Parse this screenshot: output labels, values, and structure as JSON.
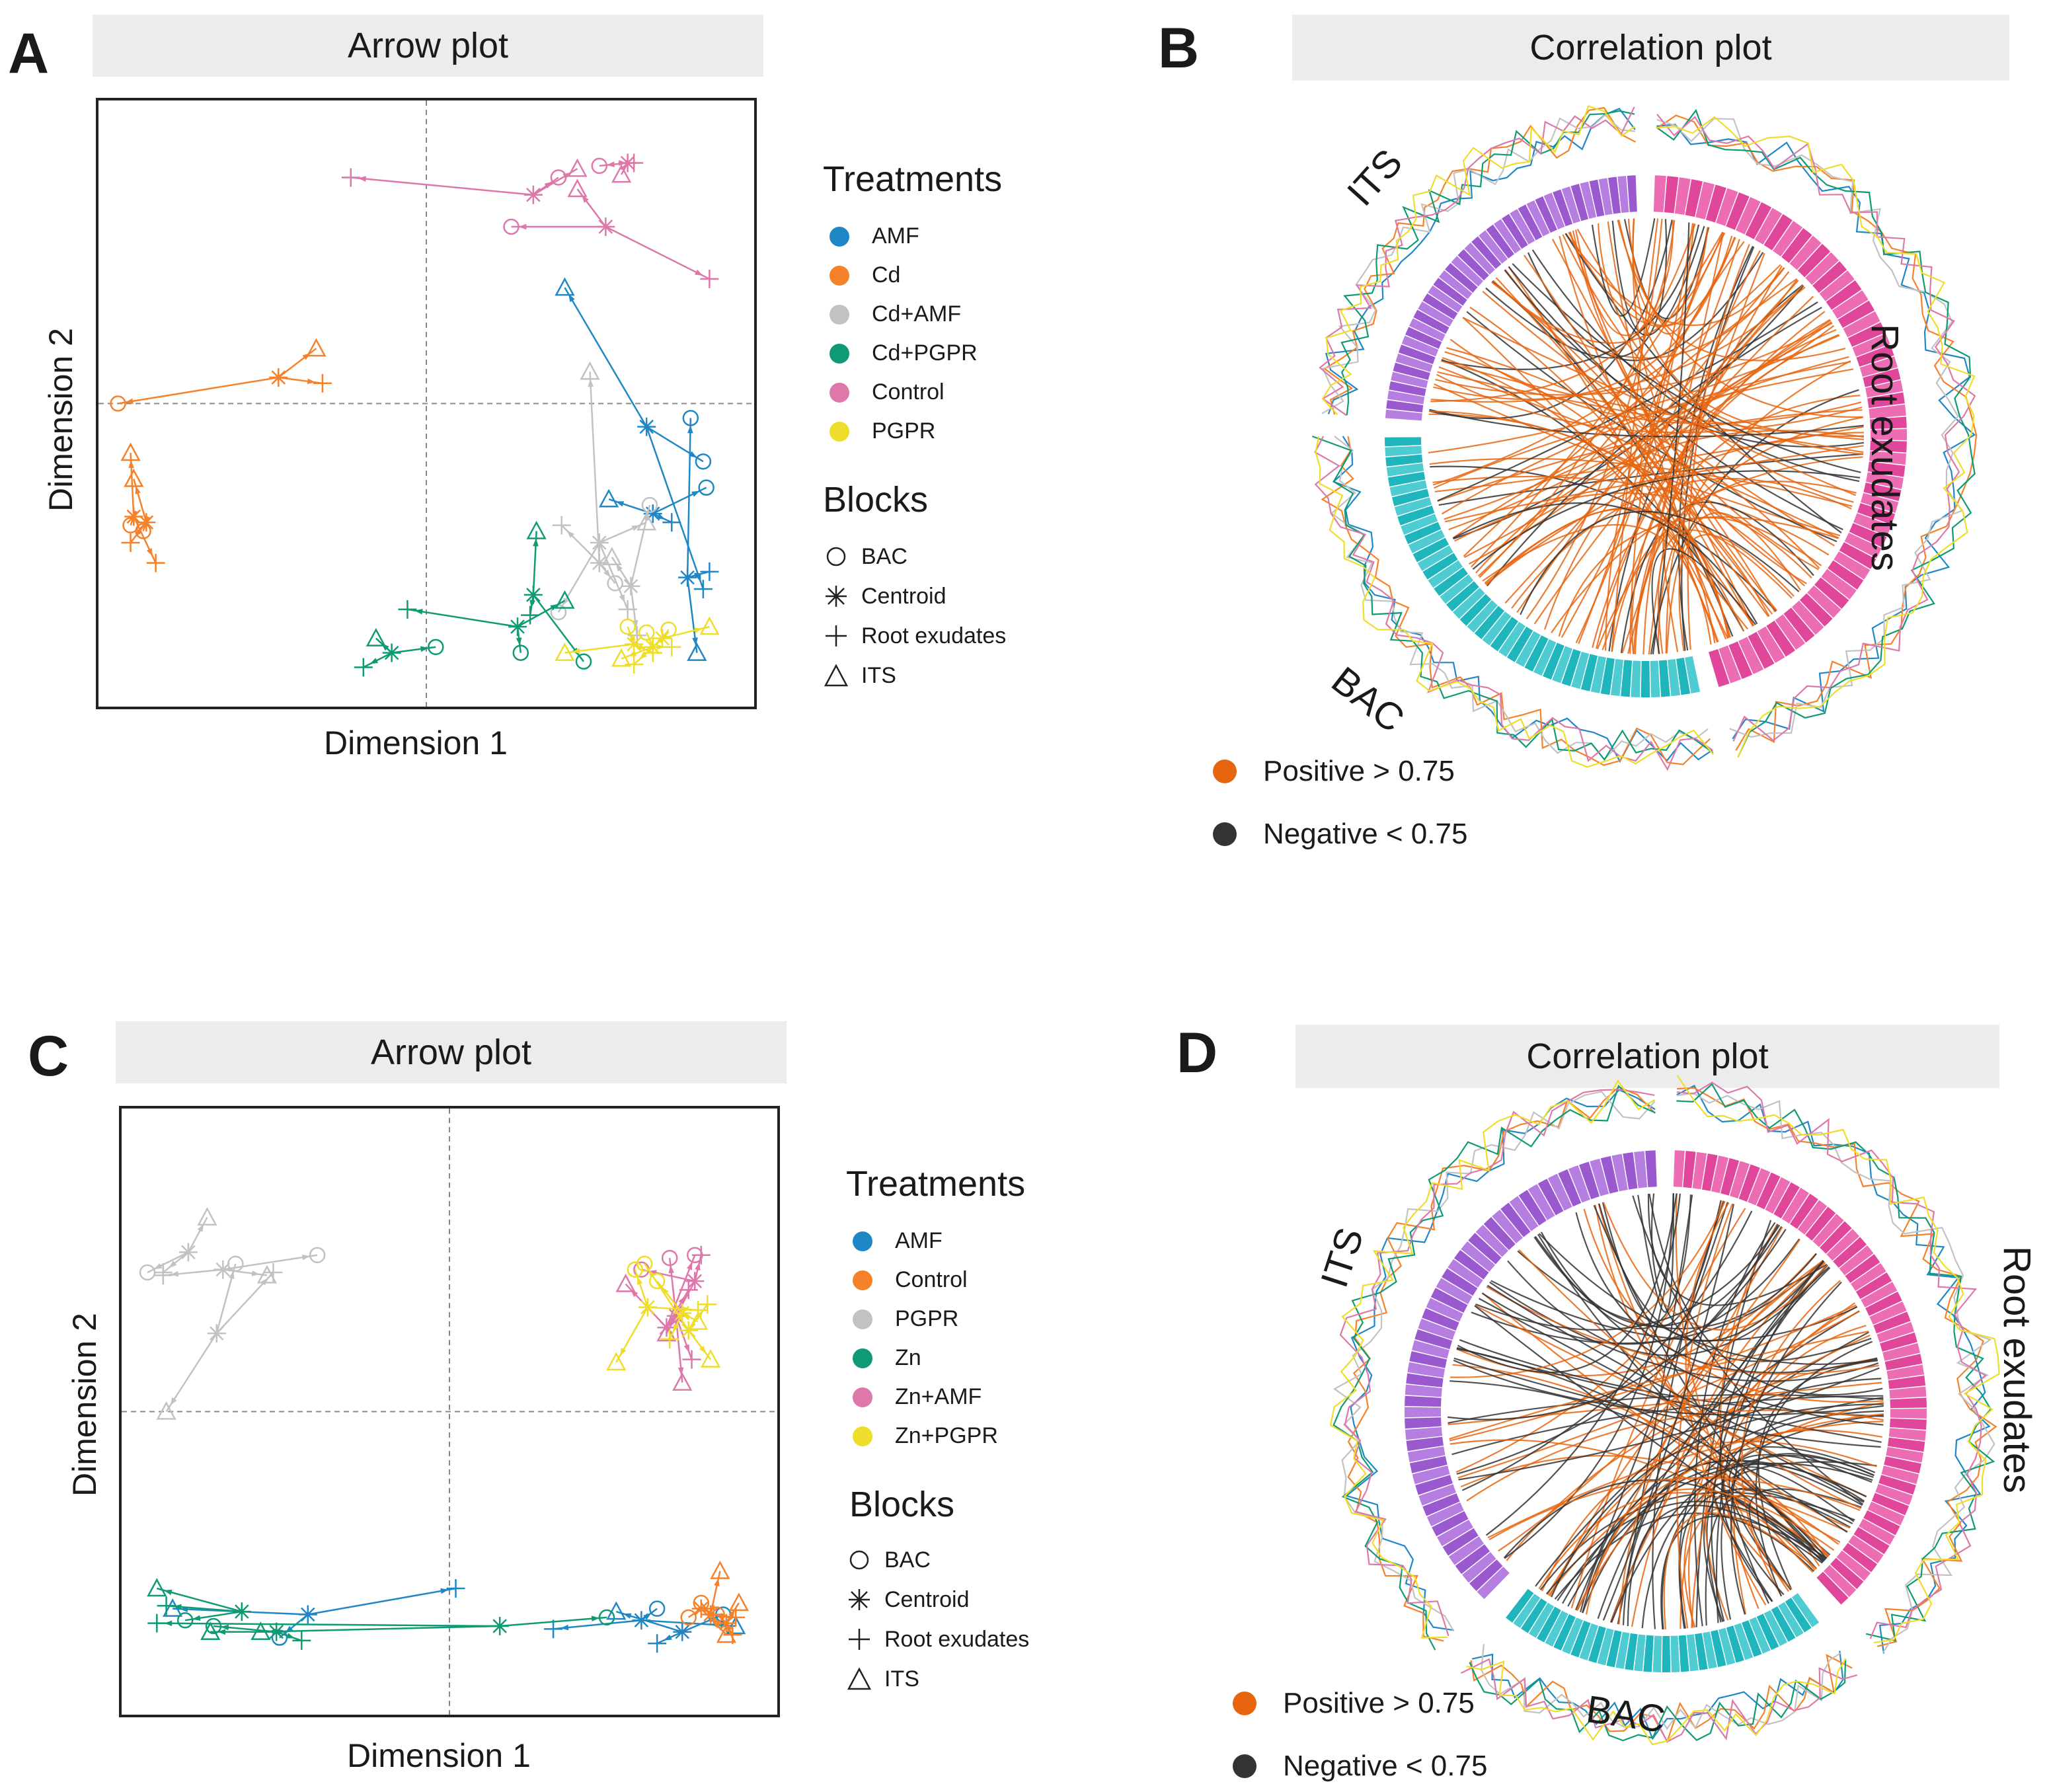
{
  "panels": {
    "A": {
      "letter": "A",
      "title": "Arrow plot",
      "xlabel": "Dimension 1",
      "ylabel": "Dimension 2"
    },
    "B": {
      "letter": "B",
      "title": "Correlation plot"
    },
    "C": {
      "letter": "C",
      "title": "Arrow plot",
      "xlabel": "Dimension 1",
      "ylabel": "Dimension 2"
    },
    "D": {
      "letter": "D",
      "title": "Correlation plot"
    }
  },
  "legendA": {
    "treatments_title": "Treatments",
    "treatments": [
      {
        "label": "AMF",
        "color": "#1f87c5"
      },
      {
        "label": "Cd",
        "color": "#f5822a"
      },
      {
        "label": "Cd+AMF",
        "color": "#c2c2c2"
      },
      {
        "label": "Cd+PGPR",
        "color": "#0e9b73"
      },
      {
        "label": "Control",
        "color": "#de77aa"
      },
      {
        "label": "PGPR",
        "color": "#eedd2a"
      }
    ],
    "blocks_title": "Blocks",
    "blocks": [
      {
        "label": "BAC",
        "icon": "circle-icon"
      },
      {
        "label": "Centroid",
        "icon": "asterisk-icon"
      },
      {
        "label": "Root exudates",
        "icon": "plus-icon"
      },
      {
        "label": "ITS",
        "icon": "triangle-icon"
      }
    ]
  },
  "legendC": {
    "treatments_title": "Treatments",
    "treatments": [
      {
        "label": "AMF",
        "color": "#1f87c5"
      },
      {
        "label": "Control",
        "color": "#f5822a"
      },
      {
        "label": "PGPR",
        "color": "#c2c2c2"
      },
      {
        "label": "Zn",
        "color": "#0e9b73"
      },
      {
        "label": "Zn+AMF",
        "color": "#de77aa"
      },
      {
        "label": "Zn+PGPR",
        "color": "#eedd2a"
      }
    ],
    "blocks_title": "Blocks",
    "blocks": [
      {
        "label": "BAC",
        "icon": "circle-icon"
      },
      {
        "label": "Centroid",
        "icon": "asterisk-icon"
      },
      {
        "label": "Root exudates",
        "icon": "plus-icon"
      },
      {
        "label": "ITS",
        "icon": "triangle-icon"
      }
    ]
  },
  "correlationB": {
    "labels": {
      "its": "ITS",
      "root": "Root exudates",
      "bac": "BAC"
    },
    "legend": [
      {
        "label": "Positive > 0.75",
        "color": "#e8650f"
      },
      {
        "label": "Negative < 0.75",
        "color": "#333333"
      }
    ]
  },
  "correlationD": {
    "labels": {
      "its": "ITS",
      "root": "Root exudates",
      "bac": "BAC"
    },
    "legend": [
      {
        "label": "Positive > 0.75",
        "color": "#e8650f"
      },
      {
        "label": "Negative < 0.75",
        "color": "#333333"
      }
    ]
  },
  "chart_data": [
    {
      "panel": "A",
      "type": "scatter",
      "title": "Arrow plot",
      "xlabel": "Dimension 1",
      "ylabel": "Dimension 2",
      "xlim": [
        -1.0,
        1.0
      ],
      "ylim": [
        -1.0,
        1.0
      ],
      "reference_lines": {
        "x": 0,
        "y": 0
      },
      "series": [
        {
          "name": "AMF",
          "color": "#1f87c5",
          "groups": [
            {
              "centroid": [
                0.7,
                -0.08
              ],
              "BAC": [
                0.88,
                -0.2
              ],
              "RE": [
                0.88,
                -0.64
              ],
              "ITS": [
                0.44,
                0.4
              ]
            },
            {
              "centroid": [
                0.83,
                -0.6
              ],
              "BAC": [
                0.84,
                -0.05
              ],
              "RE": [
                0.9,
                -0.58
              ],
              "ITS": [
                0.86,
                -0.86
              ]
            },
            {
              "centroid": [
                0.72,
                -0.38
              ],
              "BAC": [
                0.89,
                -0.29
              ],
              "RE": [
                0.78,
                -0.41
              ],
              "ITS": [
                0.58,
                -0.33
              ]
            }
          ]
        },
        {
          "name": "Cd",
          "color": "#f5822a",
          "groups": [
            {
              "centroid": [
                -0.47,
                0.09
              ],
              "BAC": [
                -0.98,
                0.0
              ],
              "RE": [
                -0.33,
                0.07
              ],
              "ITS": [
                -0.35,
                0.19
              ]
            },
            {
              "centroid": [
                -0.93,
                -0.39
              ],
              "BAC": [
                -0.94,
                -0.42
              ],
              "RE": [
                -0.86,
                -0.55
              ],
              "ITS": [
                -0.94,
                -0.17
              ]
            },
            {
              "centroid": [
                -0.89,
                -0.41
              ],
              "BAC": [
                -0.9,
                -0.44
              ],
              "RE": [
                -0.94,
                -0.48
              ],
              "ITS": [
                -0.93,
                -0.26
              ]
            }
          ]
        },
        {
          "name": "Cd+AMF",
          "color": "#c2c2c2",
          "groups": [
            {
              "centroid": [
                0.55,
                -0.55
              ],
              "BAC": [
                0.6,
                -0.62
              ],
              "RE": [
                0.43,
                -0.42
              ],
              "ITS": [
                0.52,
                0.11
              ]
            },
            {
              "centroid": [
                0.65,
                -0.63
              ],
              "BAC": [
                0.71,
                -0.35
              ],
              "RE": [
                0.67,
                -0.8
              ],
              "ITS": [
                0.59,
                -0.53
              ]
            },
            {
              "centroid": [
                0.55,
                -0.48
              ],
              "BAC": [
                0.42,
                -0.72
              ],
              "RE": [
                0.64,
                -0.71
              ],
              "ITS": [
                0.7,
                -0.41
              ]
            }
          ]
        },
        {
          "name": "Cd+PGPR",
          "color": "#0e9b73",
          "groups": [
            {
              "centroid": [
                -0.11,
                -0.86
              ],
              "BAC": [
                0.03,
                -0.84
              ],
              "RE": [
                -0.2,
                -0.91
              ],
              "ITS": [
                -0.16,
                -0.81
              ]
            },
            {
              "centroid": [
                0.29,
                -0.77
              ],
              "BAC": [
                0.3,
                -0.86
              ],
              "RE": [
                -0.06,
                -0.71
              ],
              "ITS": [
                0.44,
                -0.68
              ]
            },
            {
              "centroid": [
                0.34,
                -0.66
              ],
              "BAC": [
                0.5,
                -0.89
              ],
              "RE": [
                0.33,
                -0.73
              ],
              "ITS": [
                0.35,
                -0.44
              ]
            }
          ]
        },
        {
          "name": "Control",
          "color": "#de77aa",
          "groups": [
            {
              "centroid": [
                0.34,
                0.72
              ],
              "BAC": [
                0.42,
                0.78
              ],
              "RE": [
                -0.24,
                0.78
              ],
              "ITS": [
                0.48,
                0.81
              ]
            },
            {
              "centroid": [
                0.57,
                0.61
              ],
              "BAC": [
                0.27,
                0.61
              ],
              "RE": [
                0.9,
                0.43
              ],
              "ITS": [
                0.48,
                0.74
              ]
            },
            {
              "centroid": [
                0.64,
                0.83
              ],
              "BAC": [
                0.55,
                0.82
              ],
              "RE": [
                0.66,
                0.83
              ],
              "ITS": [
                0.62,
                0.79
              ]
            }
          ]
        },
        {
          "name": "PGPR",
          "color": "#eedd2a",
          "groups": [
            {
              "centroid": [
                0.66,
                -0.83
              ],
              "BAC": [
                0.64,
                -0.77
              ],
              "RE": [
                0.72,
                -0.86
              ],
              "ITS": [
                0.44,
                -0.86
              ]
            },
            {
              "centroid": [
                0.75,
                -0.81
              ],
              "BAC": [
                0.77,
                -0.78
              ],
              "RE": [
                0.66,
                -0.9
              ],
              "ITS": [
                0.9,
                -0.77
              ]
            },
            {
              "centroid": [
                0.72,
                -0.84
              ],
              "BAC": [
                0.7,
                -0.79
              ],
              "RE": [
                0.78,
                -0.84
              ],
              "ITS": [
                0.62,
                -0.88
              ]
            }
          ]
        }
      ]
    },
    {
      "panel": "C",
      "type": "scatter",
      "title": "Arrow plot",
      "xlabel": "Dimension 1",
      "ylabel": "Dimension 2",
      "xlim": [
        -1.0,
        1.0
      ],
      "ylim": [
        -1.0,
        1.0
      ],
      "reference_lines": {
        "x": 0,
        "y": 0
      },
      "series": [
        {
          "name": "AMF",
          "color": "#1f87c5",
          "groups": [
            {
              "centroid": [
                -0.45,
                -0.7
              ],
              "BAC": [
                -0.54,
                -0.78
              ],
              "RE": [
                0.02,
                -0.61
              ],
              "ITS": [
                -0.88,
                -0.68
              ]
            },
            {
              "centroid": [
                0.61,
                -0.72
              ],
              "BAC": [
                0.66,
                -0.68
              ],
              "RE": [
                0.33,
                -0.75
              ],
              "ITS": [
                0.91,
                -0.74
              ]
            },
            {
              "centroid": [
                0.74,
                -0.76
              ],
              "BAC": [
                0.87,
                -0.7
              ],
              "RE": [
                0.66,
                -0.8
              ],
              "ITS": [
                0.53,
                -0.69
              ]
            }
          ]
        },
        {
          "name": "Control",
          "color": "#f5822a",
          "groups": [
            {
              "centroid": [
                0.83,
                -0.7
              ],
              "BAC": [
                0.8,
                -0.66
              ],
              "RE": [
                0.91,
                -0.71
              ],
              "ITS": [
                0.86,
                -0.55
              ]
            },
            {
              "centroid": [
                0.88,
                -0.73
              ],
              "BAC": [
                0.85,
                -0.7
              ],
              "RE": [
                0.9,
                -0.77
              ],
              "ITS": [
                0.92,
                -0.66
              ]
            },
            {
              "centroid": [
                0.8,
                -0.68
              ],
              "BAC": [
                0.76,
                -0.71
              ],
              "RE": [
                0.84,
                -0.7
              ],
              "ITS": [
                0.88,
                -0.77
              ]
            }
          ]
        },
        {
          "name": "PGPR",
          "color": "#c2c2c2",
          "groups": [
            {
              "centroid": [
                -0.83,
                0.55
              ],
              "BAC": [
                -0.96,
                0.48
              ],
              "RE": [
                -0.91,
                0.48
              ],
              "ITS": [
                -0.77,
                0.67
              ]
            },
            {
              "centroid": [
                -0.72,
                0.49
              ],
              "BAC": [
                -0.42,
                0.54
              ],
              "RE": [
                -0.91,
                0.47
              ],
              "ITS": [
                -0.58,
                0.47
              ]
            },
            {
              "centroid": [
                -0.74,
                0.27
              ],
              "BAC": [
                -0.68,
                0.51
              ],
              "RE": [
                -0.56,
                0.48
              ],
              "ITS": [
                -0.9,
                0.0
              ]
            }
          ]
        },
        {
          "name": "Zn",
          "color": "#0e9b73",
          "groups": [
            {
              "centroid": [
                -0.66,
                -0.69
              ],
              "BAC": [
                -0.84,
                -0.72
              ],
              "RE": [
                -0.9,
                -0.67
              ],
              "ITS": [
                -0.93,
                -0.61
              ]
            },
            {
              "centroid": [
                -0.55,
                -0.76
              ],
              "BAC": [
                -0.75,
                -0.74
              ],
              "RE": [
                -0.47,
                -0.79
              ],
              "ITS": [
                -0.76,
                -0.76
              ]
            },
            {
              "centroid": [
                0.16,
                -0.74
              ],
              "BAC": [
                0.5,
                -0.71
              ],
              "RE": [
                -0.93,
                -0.73
              ],
              "ITS": [
                -0.6,
                -0.76
              ]
            }
          ]
        },
        {
          "name": "Zn+AMF",
          "color": "#de77aa",
          "groups": [
            {
              "centroid": [
                0.78,
                0.45
              ],
              "BAC": [
                0.61,
                0.49
              ],
              "RE": [
                0.8,
                0.54
              ],
              "ITS": [
                0.69,
                0.27
              ]
            },
            {
              "centroid": [
                0.72,
                0.33
              ],
              "BAC": [
                0.7,
                0.53
              ],
              "RE": [
                0.77,
                0.18
              ],
              "ITS": [
                0.74,
                0.1
              ]
            },
            {
              "centroid": [
                0.69,
                0.29
              ],
              "BAC": [
                0.78,
                0.54
              ],
              "RE": [
                0.76,
                0.42
              ],
              "ITS": [
                0.56,
                0.44
              ]
            }
          ]
        },
        {
          "name": "Zn+PGPR",
          "color": "#eedd2a",
          "groups": [
            {
              "centroid": [
                0.63,
                0.36
              ],
              "BAC": [
                0.59,
                0.49
              ],
              "RE": [
                0.79,
                0.35
              ],
              "ITS": [
                0.53,
                0.17
              ]
            },
            {
              "centroid": [
                0.76,
                0.28
              ],
              "BAC": [
                0.62,
                0.51
              ],
              "RE": [
                0.82,
                0.37
              ],
              "ITS": [
                0.83,
                0.18
              ]
            },
            {
              "centroid": [
                0.74,
                0.34
              ],
              "BAC": [
                0.66,
                0.45
              ],
              "RE": [
                0.7,
                0.25
              ],
              "ITS": [
                0.79,
                0.31
              ]
            }
          ]
        }
      ]
    }
  ]
}
